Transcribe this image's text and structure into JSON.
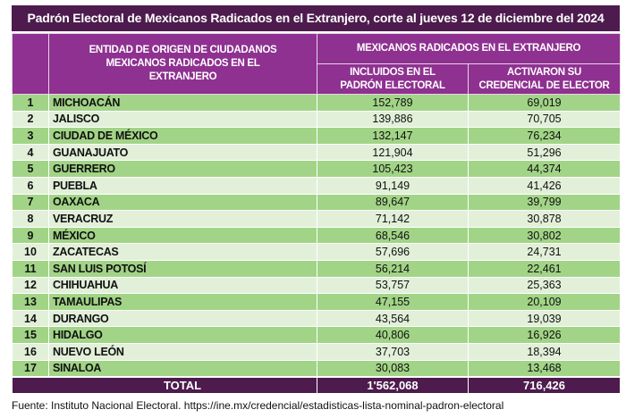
{
  "title": "Padrón Electoral de Mexicanos Radicados en el Extranjero, corte al jueves 12 de diciembre del 2024",
  "headers": {
    "entity": "ENTIDAD DE ORIGEN DE CIUDADANOS MEXICANOS RADICADOS EN EL EXTRANJERO",
    "group": "MEXICANOS RADICADOS EN EL EXTRANJERO",
    "included": "INCLUIDOS EN EL PADRÓN ELECTORAL",
    "activated": "ACTIVARON SU  CREDENCIAL DE ELECTOR"
  },
  "rows": [
    {
      "n": "1",
      "state": "MICHOACÁN",
      "included": "152,789",
      "activated": "69,019"
    },
    {
      "n": "2",
      "state": "JALISCO",
      "included": "139,886",
      "activated": "70,705"
    },
    {
      "n": "3",
      "state": "CIUDAD DE MÉXICO",
      "included": "132,147",
      "activated": "76,234"
    },
    {
      "n": "4",
      "state": "GUANAJUATO",
      "included": "121,904",
      "activated": "51,296"
    },
    {
      "n": "5",
      "state": "GUERRERO",
      "included": "105,423",
      "activated": "44,374"
    },
    {
      "n": "6",
      "state": "PUEBLA",
      "included": "91,149",
      "activated": "41,426"
    },
    {
      "n": "7",
      "state": "OAXACA",
      "included": "89,647",
      "activated": "39,799"
    },
    {
      "n": "8",
      "state": "VERACRUZ",
      "included": "71,142",
      "activated": "30,878"
    },
    {
      "n": "9",
      "state": "MÉXICO",
      "included": "68,546",
      "activated": "30,802"
    },
    {
      "n": "10",
      "state": "ZACATECAS",
      "included": "57,696",
      "activated": "24,731"
    },
    {
      "n": "11",
      "state": "SAN LUIS POTOSÍ",
      "included": "56,214",
      "activated": "22,461"
    },
    {
      "n": "12",
      "state": "CHIHUAHUA",
      "included": "53,757",
      "activated": "25,363"
    },
    {
      "n": "13",
      "state": "TAMAULIPAS",
      "included": "47,155",
      "activated": "20,109"
    },
    {
      "n": "14",
      "state": "DURANGO",
      "included": "43,564",
      "activated": "19,039"
    },
    {
      "n": "15",
      "state": "HIDALGO",
      "included": "40,806",
      "activated": "16,926"
    },
    {
      "n": "16",
      "state": "NUEVO LEÓN",
      "included": "37,703",
      "activated": "18,394"
    },
    {
      "n": "17",
      "state": "SINALOA",
      "included": "30,083",
      "activated": "13,468"
    }
  ],
  "total": {
    "label": "TOTAL",
    "included": "1'562,068",
    "activated": "716,426"
  },
  "source": "Fuente: Instituto Nacional Electoral. https://ine.mx/credencial/estadisticas-lista-nominal-padron-electoral",
  "colors": {
    "title_bg": "#4d1b4d",
    "header_bg": "#8e3190",
    "row_dark": "#a2d487",
    "row_light": "#e2f0d9"
  }
}
